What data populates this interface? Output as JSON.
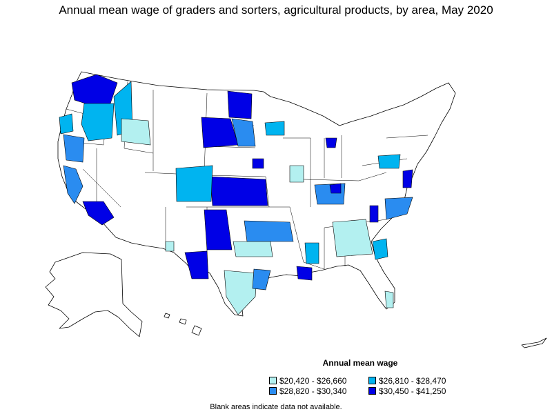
{
  "title": "Annual mean wage of graders and sorters, agricultural products, by area, May 2020",
  "legend": {
    "title": "Annual mean wage",
    "items": [
      {
        "label": "$20,420 - $26,660",
        "color": "#b3f0f0"
      },
      {
        "label": "$26,810 - $28,470",
        "color": "#00b4f0"
      },
      {
        "label": "$28,820 - $30,340",
        "color": "#2a8cf0"
      },
      {
        "label": "$30,450 - $41,250",
        "color": "#0000e6"
      }
    ]
  },
  "footnote": "Blank areas indicate data not available.",
  "colors": {
    "no_data": "#ffffff",
    "outline": "#000000"
  }
}
